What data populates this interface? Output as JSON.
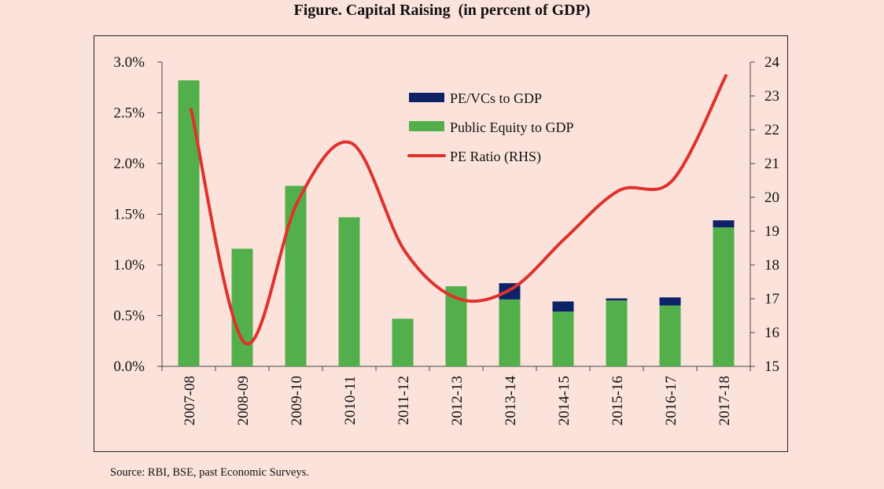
{
  "title": "Figure. Capital Raising  (in percent of GDP)",
  "source": "Source: RBI, BSE, past Economic Surveys.",
  "colors": {
    "background": "#fbe3dc",
    "pe_vc": "#0d2266",
    "public_equity": "#53af4b",
    "pe_ratio": "#e0322c"
  },
  "chart_data": {
    "type": "bar",
    "categories": [
      "2007-08",
      "2008-09",
      "2009-10",
      "2010-11",
      "2011-12",
      "2012-13",
      "2013-14",
      "2014-15",
      "2015-16",
      "2016-17",
      "2017-18"
    ],
    "series": [
      {
        "name": "PE/VCs to GDP",
        "type": "bar",
        "stacked": true,
        "axis": "left",
        "values": [
          0.0,
          0.0,
          0.0,
          0.0,
          0.0,
          0.0,
          0.16,
          0.1,
          0.02,
          0.08,
          0.07
        ]
      },
      {
        "name": "Public Equity to GDP",
        "type": "bar",
        "stacked": true,
        "axis": "left",
        "values": [
          2.82,
          1.16,
          1.78,
          1.47,
          0.47,
          0.79,
          0.66,
          0.54,
          0.65,
          0.6,
          1.37
        ]
      },
      {
        "name": "PE Ratio (RHS)",
        "type": "line",
        "axis": "right",
        "values": [
          22.6,
          15.7,
          19.9,
          21.6,
          18.4,
          17.0,
          17.3,
          18.8,
          20.2,
          20.5,
          23.6
        ]
      }
    ],
    "y_left": {
      "ylim": [
        0,
        3.0
      ],
      "ticks": [
        "0.0%",
        "0.5%",
        "1.0%",
        "1.5%",
        "2.0%",
        "2.5%",
        "3.0%"
      ]
    },
    "y_right": {
      "ylim": [
        15,
        24
      ],
      "ticks": [
        "15",
        "16",
        "17",
        "18",
        "19",
        "20",
        "21",
        "22",
        "23",
        "24"
      ]
    },
    "grid": false,
    "legend_position": "top-center"
  }
}
